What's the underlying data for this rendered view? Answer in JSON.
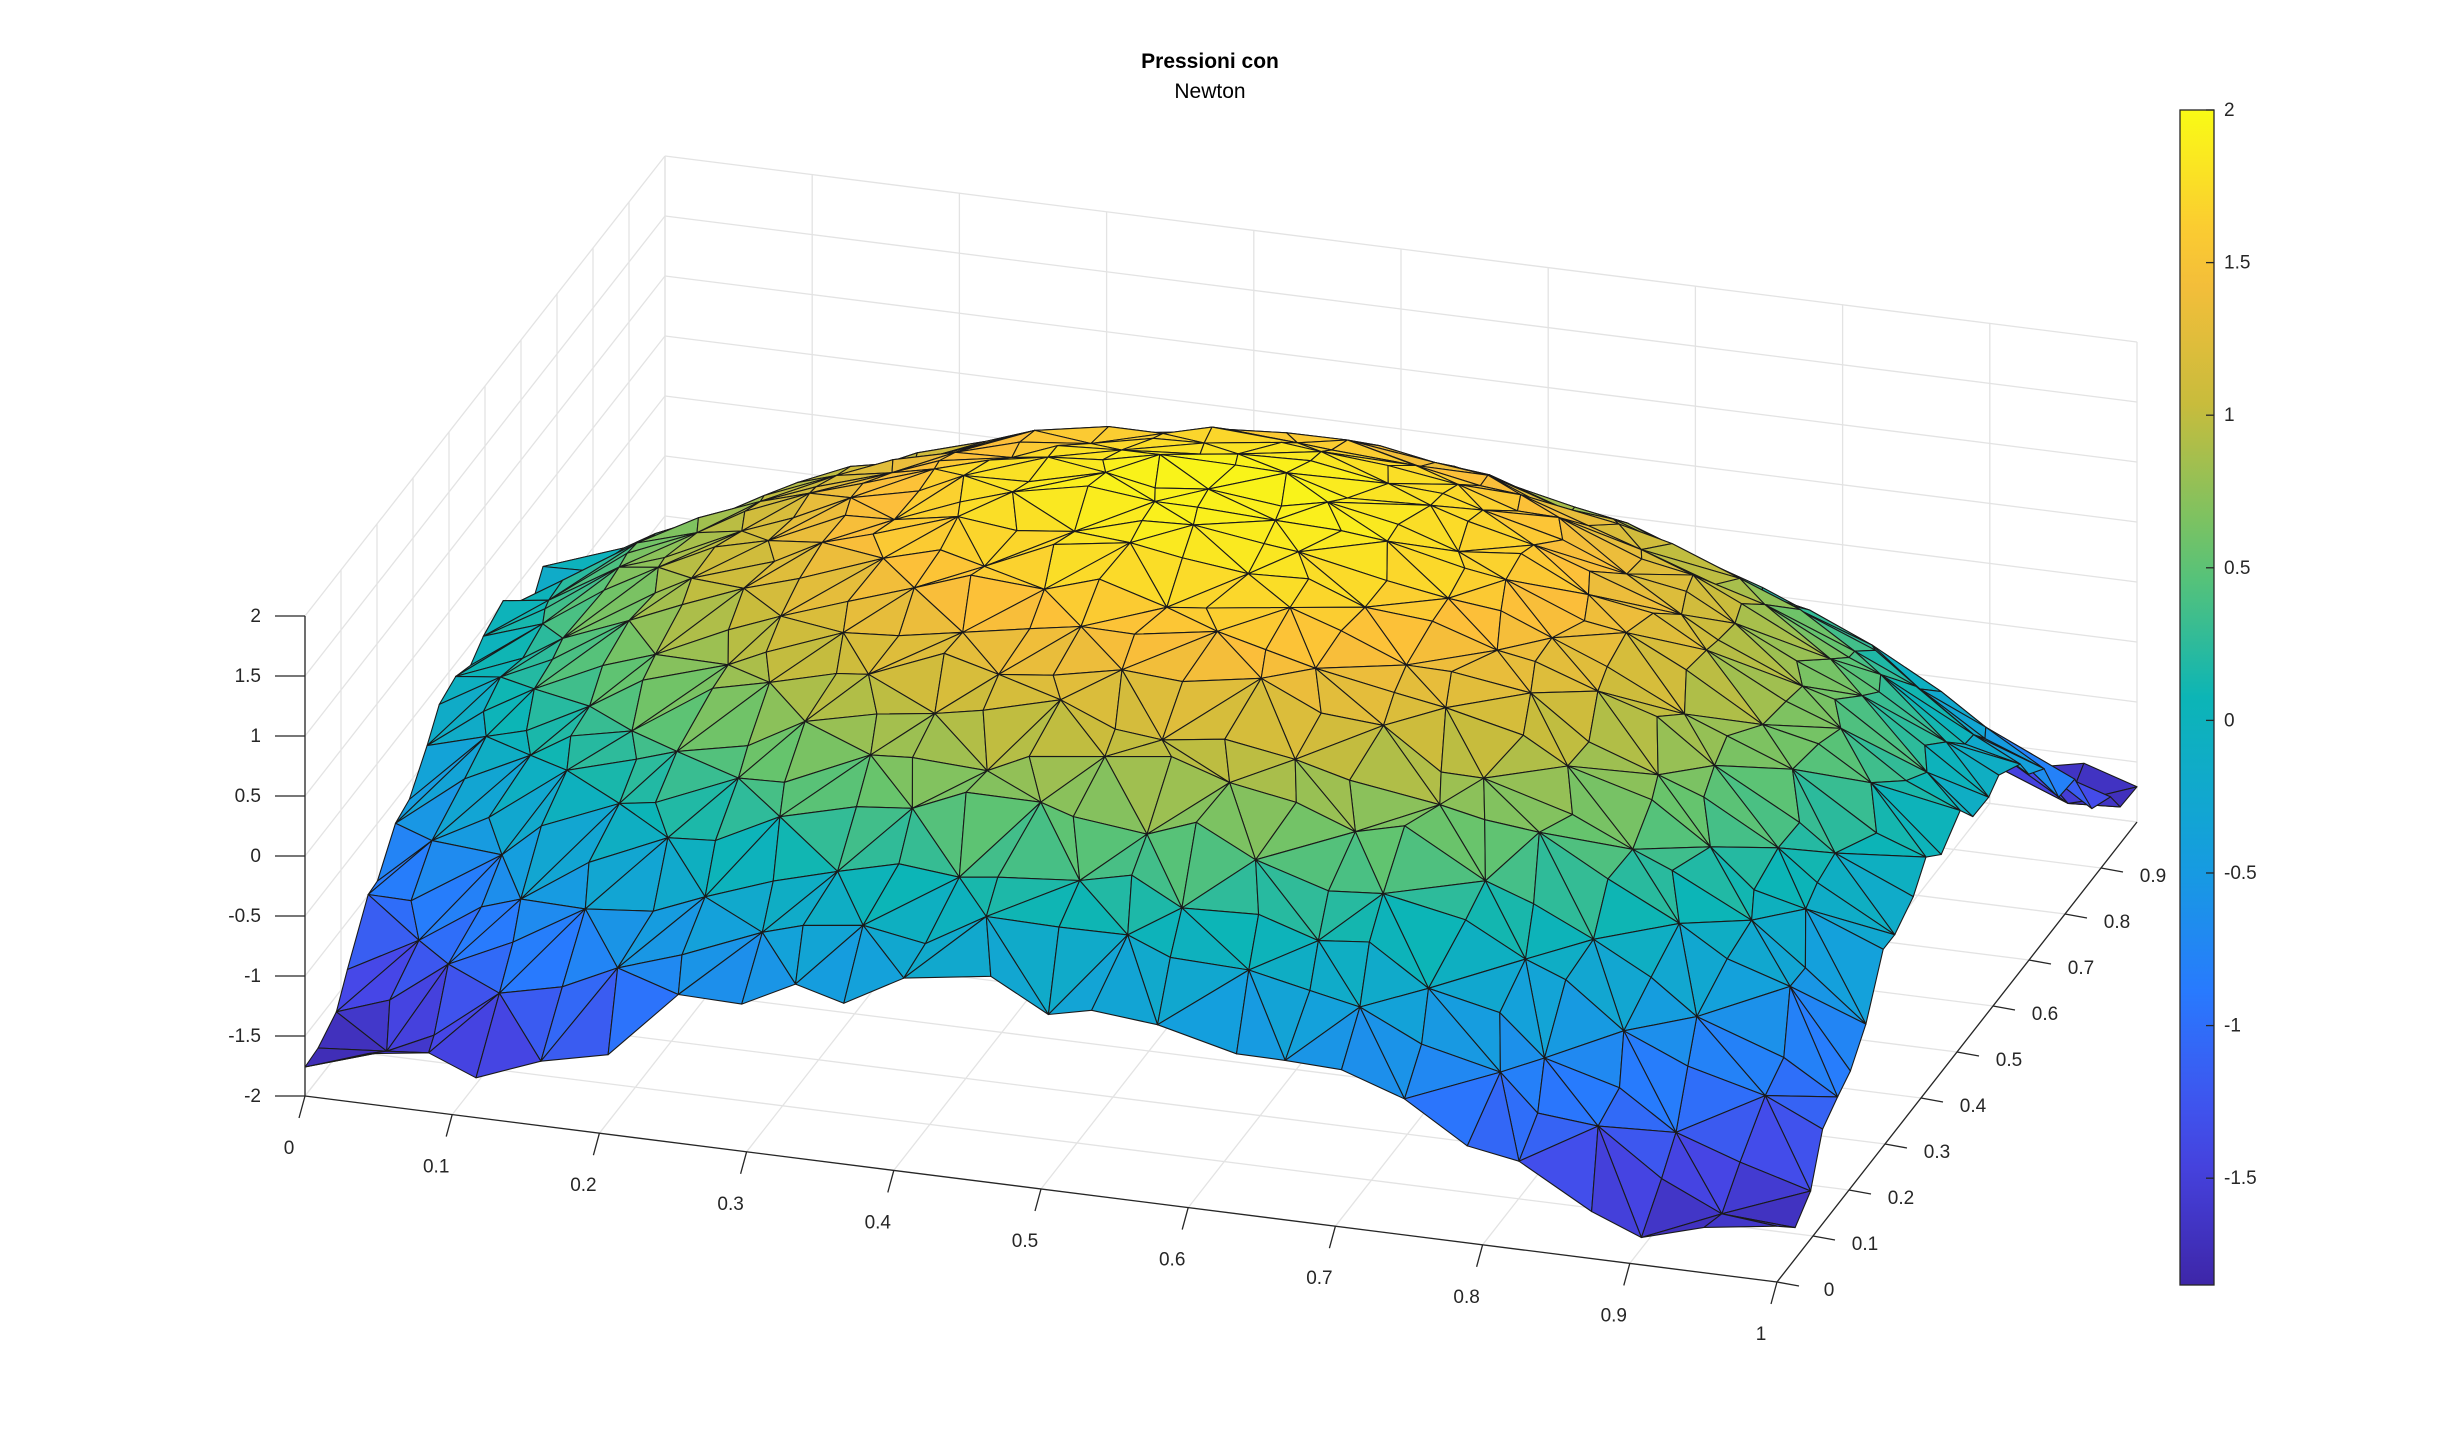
{
  "chart_data": {
    "type": "surface",
    "title": "Pressioni con",
    "subtitle": "Newton",
    "xlabel": "",
    "ylabel": "",
    "zlabel": "",
    "x_ticks": [
      "0",
      "0.1",
      "0.2",
      "0.3",
      "0.4",
      "0.5",
      "0.6",
      "0.7",
      "0.8",
      "0.9",
      "1"
    ],
    "y_ticks": [
      "0",
      "0.1",
      "0.2",
      "0.3",
      "0.4",
      "0.5",
      "0.6",
      "0.7",
      "0.8",
      "0.9"
    ],
    "z_ticks": [
      "-2",
      "-1.5",
      "-1",
      "-0.5",
      "0",
      "0.5",
      "1",
      "1.5",
      "2"
    ],
    "colorbar_ticks": [
      "-1.5",
      "-1",
      "-0.5",
      "0",
      "0.5",
      "1",
      "1.5",
      "2"
    ],
    "xlim": [
      0,
      1
    ],
    "ylim": [
      0,
      1
    ],
    "zlim": [
      -2,
      2
    ],
    "color_range": [
      -1.85,
      2
    ],
    "colormap": "parula",
    "grid": true,
    "mesh": "triangulated",
    "surface": {
      "center": [
        0.5,
        0.5
      ],
      "peak_value": 1.95,
      "edge_value": -1.7,
      "description_values": "dome: high center (~1.9), low edges (~-1.7)"
    }
  },
  "colors": {
    "edge": "#1a1a1a",
    "grid": "#e3e3e3",
    "axis": "#262626"
  }
}
